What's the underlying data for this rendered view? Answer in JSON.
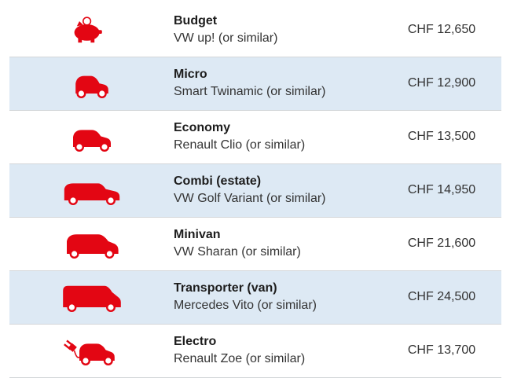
{
  "rows": [
    {
      "category": "Budget",
      "model": "VW up! (or similar)",
      "price": "CHF 12,650"
    },
    {
      "category": "Micro",
      "model": "Smart Twinamic (or similar)",
      "price": "CHF 12,900"
    },
    {
      "category": "Economy",
      "model": "Renault Clio (or similar)",
      "price": "CHF 13,500"
    },
    {
      "category": "Combi (estate)",
      "model": "VW Golf Variant (or similar)",
      "price": "CHF 14,950"
    },
    {
      "category": "Minivan",
      "model": "VW Sharan (or similar)",
      "price": "CHF 21,600"
    },
    {
      "category": "Transporter (van)",
      "model": "Mercedes Vito (or similar)",
      "price": "CHF 24,500"
    },
    {
      "category": "Electro",
      "model": "Renault Zoe (or similar)",
      "price": "CHF 13,700"
    }
  ]
}
